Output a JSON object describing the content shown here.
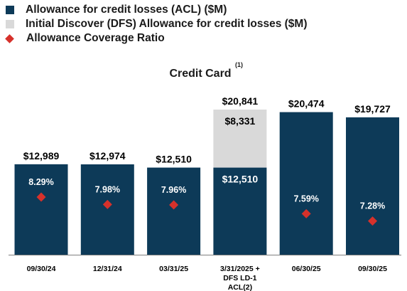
{
  "legend": {
    "items": [
      {
        "label": "Allowance for credit losses (ACL) ($M)",
        "color": "#0d3a58",
        "shape": "square"
      },
      {
        "label": "Initial Discover (DFS) Allowance for credit losses ($M)",
        "color": "#d9d9d9",
        "shape": "square"
      },
      {
        "label": "Allowance Coverage Ratio",
        "color": "#d6312b",
        "shape": "diamond"
      }
    ]
  },
  "chart_data": {
    "type": "bar",
    "title": "Credit Card",
    "title_footnote": "(1)",
    "categories": [
      [
        "09/30/24"
      ],
      [
        "12/31/24"
      ],
      [
        "03/31/25"
      ],
      [
        "3/31/2025 +",
        "DFS LD-1",
        "ACL(2)"
      ],
      [
        "06/30/25"
      ],
      [
        "09/30/25"
      ]
    ],
    "series": [
      {
        "name": "Allowance for credit losses (ACL) ($M)",
        "values": [
          12989,
          12974,
          12510,
          12510,
          20474,
          19727
        ],
        "color": "#0d3a58",
        "stack": "main"
      },
      {
        "name": "Initial Discover (DFS) Allowance for credit losses ($M)",
        "values": [
          0,
          0,
          0,
          8331,
          0,
          0
        ],
        "color": "#d9d9d9",
        "stack": "main"
      },
      {
        "name": "Allowance Coverage Ratio",
        "values": [
          8.29,
          7.98,
          7.96,
          null,
          7.59,
          7.28
        ],
        "color": "#d6312b",
        "marker": "diamond"
      }
    ],
    "total_labels": [
      "$12,989",
      "$12,974",
      "$12,510",
      "$20,841",
      "$20,474",
      "$19,727"
    ],
    "segment_labels": [
      {
        "bar": 3,
        "series": 0,
        "text": "$12,510"
      },
      {
        "bar": 3,
        "series": 1,
        "text": "$8,331"
      }
    ],
    "ratio_labels": [
      "8.29%",
      "7.98%",
      "7.96%",
      "",
      "7.59%",
      "7.28%"
    ],
    "ylim": [
      0,
      20841
    ],
    "ratio_range": [
      7.0,
      8.5
    ],
    "grid": false,
    "legend_position": "top-left"
  }
}
